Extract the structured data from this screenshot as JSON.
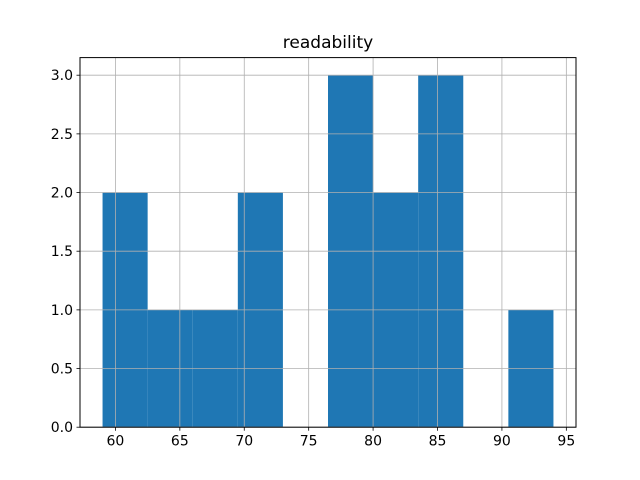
{
  "figure": {
    "background": "#ffffff"
  },
  "chart_data": {
    "type": "bar",
    "subtype": "histogram",
    "title": "readability",
    "xlabel": "",
    "ylabel": "",
    "bin_edges": [
      59,
      62.5,
      66,
      69.5,
      73,
      76.5,
      80,
      83.5,
      87,
      90.5,
      94
    ],
    "values": [
      2,
      1,
      1,
      2,
      0,
      3,
      2,
      3,
      0,
      1
    ],
    "xlim": [
      57.25,
      95.75
    ],
    "ylim": [
      0,
      3.15
    ],
    "xticks": [
      60,
      65,
      70,
      75,
      80,
      85,
      90,
      95
    ],
    "xtick_labels": [
      "60",
      "65",
      "70",
      "75",
      "80",
      "85",
      "90",
      "95"
    ],
    "yticks": [
      0.0,
      0.5,
      1.0,
      1.5,
      2.0,
      2.5,
      3.0
    ],
    "ytick_labels": [
      "0.0",
      "0.5",
      "1.0",
      "1.5",
      "2.0",
      "2.5",
      "3.0"
    ],
    "grid": true,
    "grid_over_bars": true,
    "legend": null,
    "colors": {
      "bar": "#1f77b4",
      "grid": "#b0b0b0",
      "spine": "#000000",
      "tick": "#000000",
      "text": "#000000"
    }
  }
}
